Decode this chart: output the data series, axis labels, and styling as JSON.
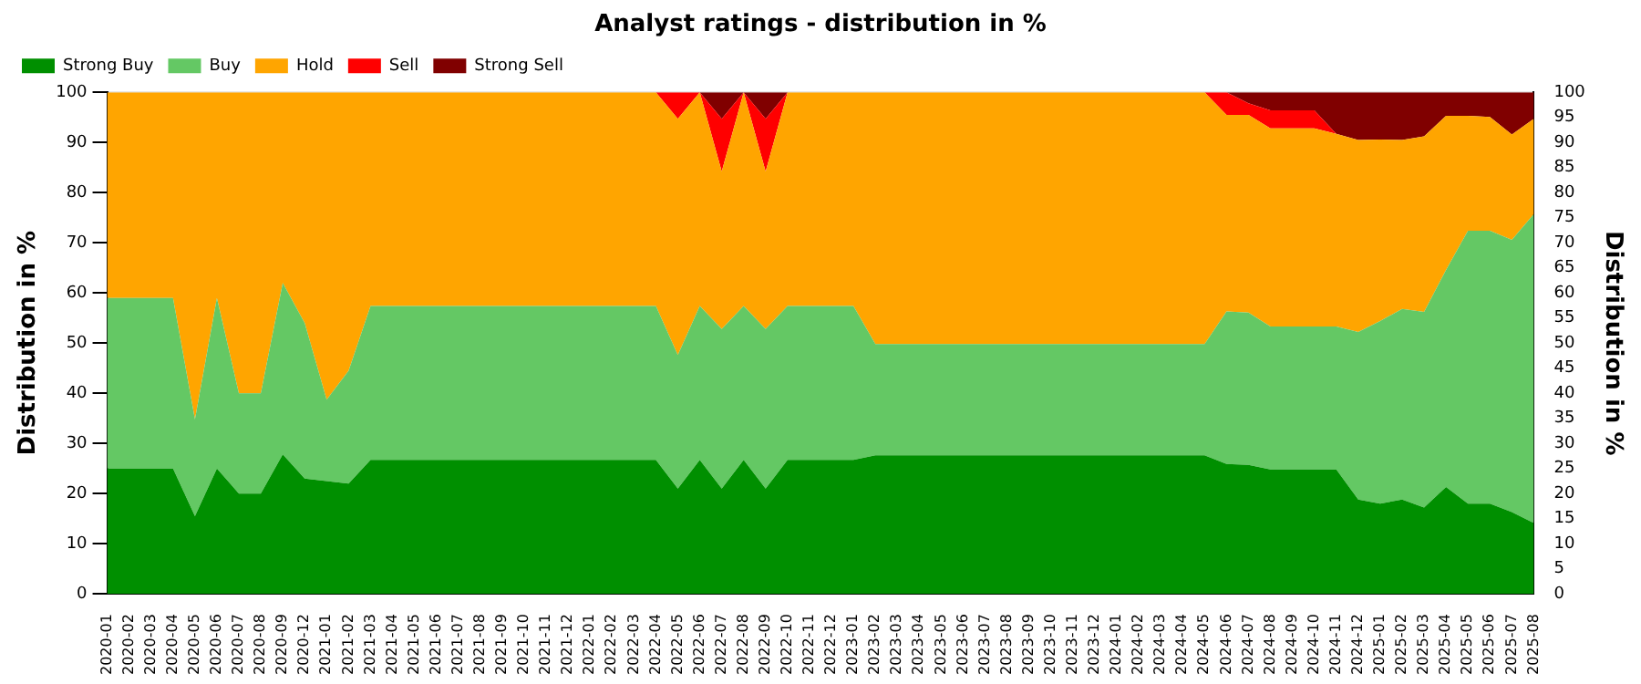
{
  "chart_data": {
    "type": "area",
    "title": "Analyst ratings - distribution in %",
    "ylabel": "Distribution in %",
    "y2label": "Distribution in %",
    "categories": [
      "2020-01",
      "2020-02",
      "2020-03",
      "2020-04",
      "2020-05",
      "2020-06",
      "2020-07",
      "2020-08",
      "2020-09",
      "2020-12",
      "2021-01",
      "2021-02",
      "2021-03",
      "2021-04",
      "2021-05",
      "2021-06",
      "2021-07",
      "2021-08",
      "2021-09",
      "2021-10",
      "2021-11",
      "2021-12",
      "2022-01",
      "2022-02",
      "2022-03",
      "2022-04",
      "2022-05",
      "2022-06",
      "2022-07",
      "2022-08",
      "2022-09",
      "2022-10",
      "2022-11",
      "2022-12",
      "2023-01",
      "2023-02",
      "2023-03",
      "2023-04",
      "2023-05",
      "2023-06",
      "2023-07",
      "2023-08",
      "2023-09",
      "2023-10",
      "2023-11",
      "2023-12",
      "2024-01",
      "2024-02",
      "2024-03",
      "2024-04",
      "2024-05",
      "2024-06",
      "2024-07",
      "2024-08",
      "2024-09",
      "2024-10",
      "2024-11",
      "2024-12",
      "2025-01",
      "2025-02",
      "2025-03",
      "2025-04",
      "2025-05",
      "2025-06",
      "2025-07",
      "2025-08"
    ],
    "stacked": true,
    "series": [
      {
        "name": "Strong Buy",
        "color": "#008f00",
        "values": [
          25,
          25,
          25,
          25,
          15.5,
          25,
          20,
          20,
          27.8,
          23,
          22.5,
          22,
          26.7,
          26.7,
          26.7,
          26.7,
          26.7,
          26.7,
          26.7,
          26.7,
          26.7,
          26.7,
          26.7,
          26.7,
          26.7,
          26.7,
          21,
          26.7,
          21,
          26.7,
          21,
          26.7,
          26.7,
          26.7,
          26.7,
          27.6,
          27.6,
          27.6,
          27.6,
          27.6,
          27.6,
          27.6,
          27.6,
          27.6,
          27.6,
          27.6,
          27.6,
          27.6,
          27.6,
          27.6,
          27.6,
          25.9,
          25.7,
          24.8,
          24.8,
          24.8,
          24.8,
          18.8,
          18,
          18.8,
          17.2,
          21.3,
          18,
          18,
          16.3,
          14.1
        ]
      },
      {
        "name": "Buy",
        "color": "#64c864",
        "values": [
          34,
          34,
          34,
          34,
          19.3,
          34,
          20,
          20,
          34.2,
          31,
          16.2,
          22.5,
          30.7,
          30.7,
          30.7,
          30.7,
          30.7,
          30.7,
          30.7,
          30.7,
          30.7,
          30.7,
          30.7,
          30.7,
          30.7,
          30.7,
          26.6,
          30.7,
          31.8,
          30.7,
          31.8,
          30.7,
          30.7,
          30.7,
          30.7,
          22.2,
          22.2,
          22.2,
          22.2,
          22.2,
          22.2,
          22.2,
          22.2,
          22.2,
          22.2,
          22.2,
          22.2,
          22.2,
          22.2,
          22.2,
          22.2,
          30.4,
          30.4,
          28.5,
          28.5,
          28.5,
          28.5,
          33.4,
          36.4,
          38,
          39,
          43.3,
          54.4,
          54.4,
          54.3,
          61.6
        ]
      },
      {
        "name": "Hold",
        "color": "#ffa500",
        "values": [
          41,
          41,
          41,
          41,
          65.2,
          41,
          60,
          60,
          38,
          46,
          61.3,
          55.5,
          42.6,
          42.6,
          42.6,
          42.6,
          42.6,
          42.6,
          42.6,
          42.6,
          42.6,
          42.6,
          42.6,
          42.6,
          42.6,
          42.6,
          47.1,
          42.6,
          31.4,
          42.6,
          31.4,
          42.6,
          42.6,
          42.6,
          42.6,
          50.2,
          50.2,
          50.2,
          50.2,
          50.2,
          50.2,
          50.2,
          50.2,
          50.2,
          50.2,
          50.2,
          50.2,
          50.2,
          50.2,
          50.2,
          50.2,
          39.2,
          39.4,
          39.5,
          39.5,
          39.5,
          38.4,
          38.3,
          36.2,
          33.7,
          35,
          30.7,
          22.9,
          22.7,
          21,
          19
        ]
      },
      {
        "name": "Sell",
        "color": "#ff0000",
        "values": [
          0,
          0,
          0,
          0,
          0,
          0,
          0,
          0,
          0,
          0,
          0,
          0,
          0,
          0,
          0,
          0,
          0,
          0,
          0,
          0,
          0,
          0,
          0,
          0,
          0,
          0,
          5.3,
          0,
          10.5,
          0,
          10.5,
          0,
          0,
          0,
          0,
          0,
          0,
          0,
          0,
          0,
          0,
          0,
          0,
          0,
          0,
          0,
          0,
          0,
          0,
          0,
          0,
          4.5,
          2.3,
          3.6,
          3.6,
          3.6,
          0,
          0,
          0,
          0,
          0,
          0,
          0,
          0,
          0,
          0
        ]
      },
      {
        "name": "Strong Sell",
        "color": "#800000",
        "values": [
          0,
          0,
          0,
          0,
          0,
          0,
          0,
          0,
          0,
          0,
          0,
          0,
          0,
          0,
          0,
          0,
          0,
          0,
          0,
          0,
          0,
          0,
          0,
          0,
          0,
          0,
          0,
          0,
          5.3,
          0,
          5.3,
          0,
          0,
          0,
          0,
          0,
          0,
          0,
          0,
          0,
          0,
          0,
          0,
          0,
          0,
          0,
          0,
          0,
          0,
          0,
          0,
          0,
          2.2,
          3.6,
          3.6,
          3.6,
          8.3,
          9.5,
          9.4,
          9.5,
          8.8,
          4.7,
          4.7,
          4.9,
          8.4,
          5.3
        ]
      }
    ],
    "ylim": [
      0,
      100
    ],
    "yticks": [
      0,
      10,
      20,
      30,
      40,
      50,
      60,
      70,
      80,
      90,
      100
    ],
    "y2lim": [
      0,
      100
    ],
    "y2ticks": [
      0,
      5,
      10,
      15,
      20,
      25,
      30,
      35,
      40,
      45,
      50,
      55,
      60,
      65,
      70,
      75,
      80,
      85,
      90,
      95,
      100
    ],
    "grid": "y",
    "legend": "top left"
  }
}
